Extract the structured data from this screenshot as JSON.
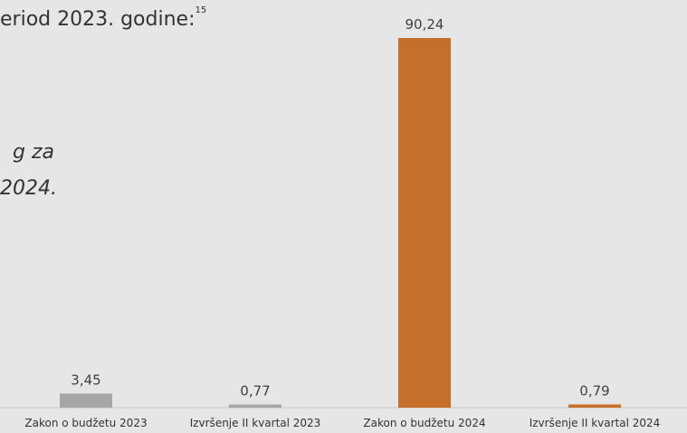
{
  "document": {
    "heading_fragment": "eriod 2023. godine:",
    "footnote_mark": "15",
    "italic_line_1": "g  za",
    "italic_line_2": "2024."
  },
  "colors": {
    "background": "#e6e6e6",
    "series_2023": "#a6a6a6",
    "series_2024": "#c4702c",
    "axis": "#c8c8c8"
  },
  "chart_data": {
    "type": "bar",
    "title": "",
    "xlabel": "",
    "ylabel": "",
    "ylim": [
      0,
      90.24
    ],
    "grid": false,
    "legend": "none",
    "categories": [
      "Zakon o budžetu 2023",
      "Izvršenje II kvartal 2023",
      "Zakon o budžetu 2024",
      "Izvršenje II kvartal 2024"
    ],
    "values": [
      3.45,
      0.77,
      90.24,
      0.79
    ],
    "value_labels": [
      "3,45",
      "0,77",
      "90,24",
      "0,79"
    ],
    "bar_colors": [
      "#a6a6a6",
      "#a6a6a6",
      "#c4702c",
      "#c4702c"
    ]
  }
}
